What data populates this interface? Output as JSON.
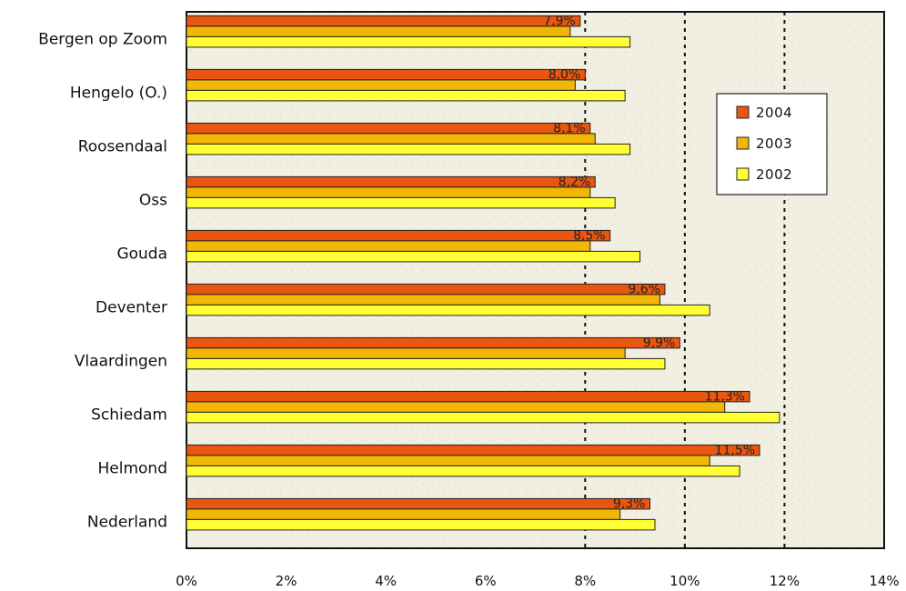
{
  "chart_data": {
    "type": "bar",
    "orientation": "horizontal",
    "categories": [
      "Bergen op Zoom",
      "Hengelo (O.)",
      "Roosendaal",
      "Oss",
      "Gouda",
      "Deventer",
      "Vlaardingen",
      "Schiedam",
      "Helmond",
      "Nederland"
    ],
    "series": [
      {
        "name": "2004",
        "color": "#E8560F",
        "values": [
          7.9,
          8.0,
          8.1,
          8.2,
          8.5,
          9.6,
          9.9,
          11.3,
          11.5,
          9.3
        ],
        "data_labels": [
          "7,9%",
          "8,0%",
          "8,1%",
          "8,2%",
          "8,5%",
          "9,6%",
          "9,9%",
          "11,3%",
          "11,5%",
          "9,3%"
        ]
      },
      {
        "name": "2003",
        "color": "#F2B705",
        "values": [
          7.7,
          7.8,
          8.2,
          8.1,
          8.1,
          9.5,
          8.8,
          10.8,
          10.5,
          8.7
        ]
      },
      {
        "name": "2002",
        "color": "#FFFF33",
        "values": [
          8.9,
          8.8,
          8.9,
          8.6,
          9.1,
          10.5,
          9.6,
          11.9,
          11.1,
          9.4
        ]
      }
    ],
    "xlim": [
      0,
      14
    ],
    "x_ticks": [
      0,
      2,
      4,
      6,
      8,
      10,
      12,
      14
    ],
    "x_tick_labels": [
      "0%",
      "2%",
      "4%",
      "6%",
      "8%",
      "10%",
      "12%",
      "14%"
    ],
    "gridlines": [
      8,
      10,
      12,
      14
    ],
    "legend_position": "top-right",
    "background": "#F1EEE2"
  }
}
